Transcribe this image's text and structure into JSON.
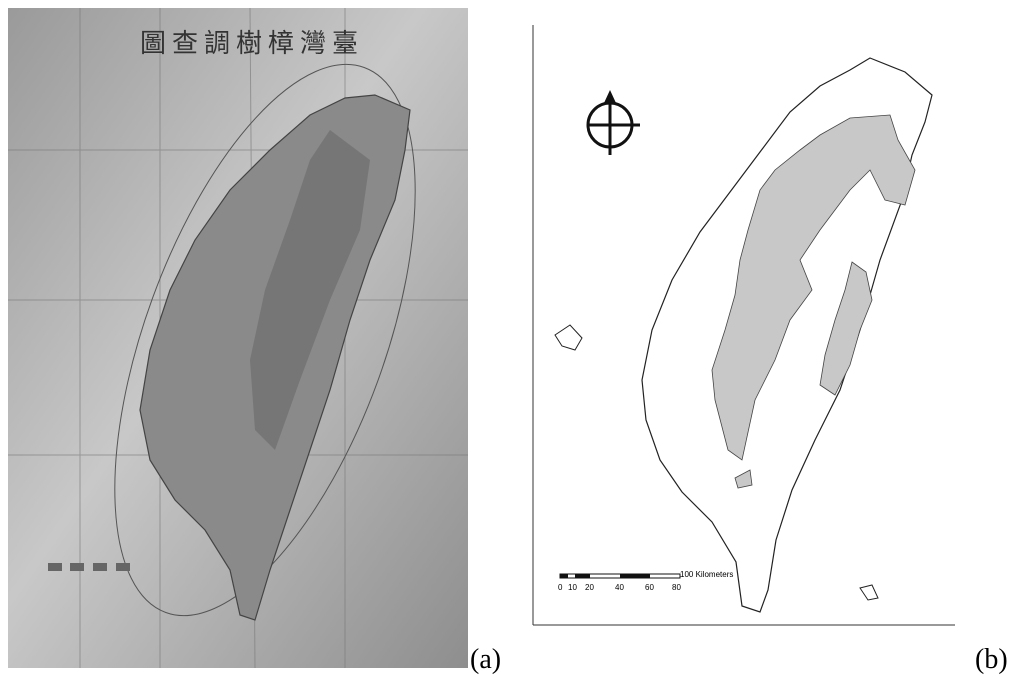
{
  "panels": [
    {
      "label": "(a)",
      "title": "圖查調樹樟灣臺"
    },
    {
      "label": "(b)",
      "scale_labels": [
        "0",
        "10",
        "20",
        "40",
        "60",
        "80",
        "100 Kilometers"
      ]
    }
  ]
}
